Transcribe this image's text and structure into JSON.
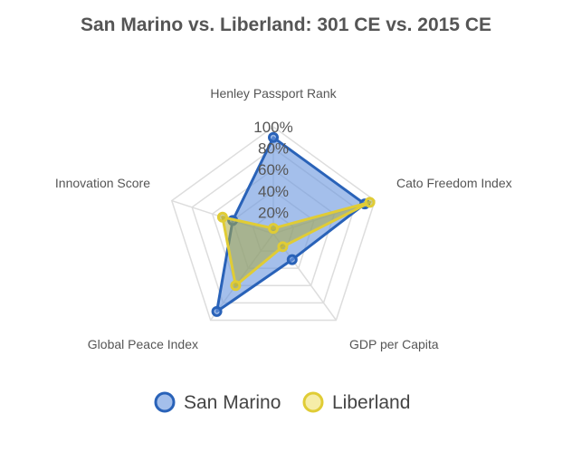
{
  "chart_data": {
    "type": "radar",
    "title": "San Marino vs. Liberland: 301 CE vs. 2015 CE",
    "axes": [
      "Henley Passport Rank",
      "Cato Freedom Index",
      "GDP per Capita",
      "Global Peace Index",
      "Innovation Score"
    ],
    "r_ticks": [
      "20%",
      "40%",
      "60%",
      "80%",
      "100%"
    ],
    "r_range": [
      0,
      100
    ],
    "legend_position": "bottom",
    "series": [
      {
        "name": "San Marino",
        "values": [
          90,
          90,
          30,
          90,
          40
        ],
        "color": "#2962b8",
        "fill": "rgba(108,152,222,0.62)"
      },
      {
        "name": "Liberland",
        "values": [
          5,
          95,
          15,
          60,
          50
        ],
        "color": "#e0cc35",
        "fill": "rgba(170,170,70,0.55)"
      }
    ]
  }
}
